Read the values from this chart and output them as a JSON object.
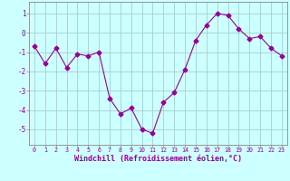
{
  "x": [
    0,
    1,
    2,
    3,
    4,
    5,
    6,
    7,
    8,
    9,
    10,
    11,
    12,
    13,
    14,
    15,
    16,
    17,
    18,
    19,
    20,
    21,
    22,
    23
  ],
  "y": [
    -0.7,
    -1.6,
    -0.8,
    -1.8,
    -1.1,
    -1.2,
    -1.0,
    -3.4,
    -4.2,
    -3.9,
    -5.0,
    -5.2,
    -3.6,
    -3.1,
    -1.9,
    -0.4,
    0.4,
    1.0,
    0.9,
    0.2,
    -0.3,
    -0.2,
    -0.8,
    -1.2
  ],
  "line_color": "#990099",
  "marker": "D",
  "marker_size": 2.5,
  "background_color": "#ccffff",
  "grid_color": "#aacccc",
  "xlabel": "Windchill (Refroidissement éolien,°C)",
  "xlim": [
    -0.5,
    23.5
  ],
  "ylim": [
    -5.8,
    1.6
  ],
  "yticks": [
    1,
    0,
    -1,
    -2,
    -3,
    -4,
    -5
  ],
  "xticks": [
    0,
    1,
    2,
    3,
    4,
    5,
    6,
    7,
    8,
    9,
    10,
    11,
    12,
    13,
    14,
    15,
    16,
    17,
    18,
    19,
    20,
    21,
    22,
    23
  ],
  "tick_color": "#990099",
  "label_color": "#990099",
  "spine_color": "#888888",
  "xtick_fontsize": 4.8,
  "ytick_fontsize": 5.5,
  "xlabel_fontsize": 6.0
}
